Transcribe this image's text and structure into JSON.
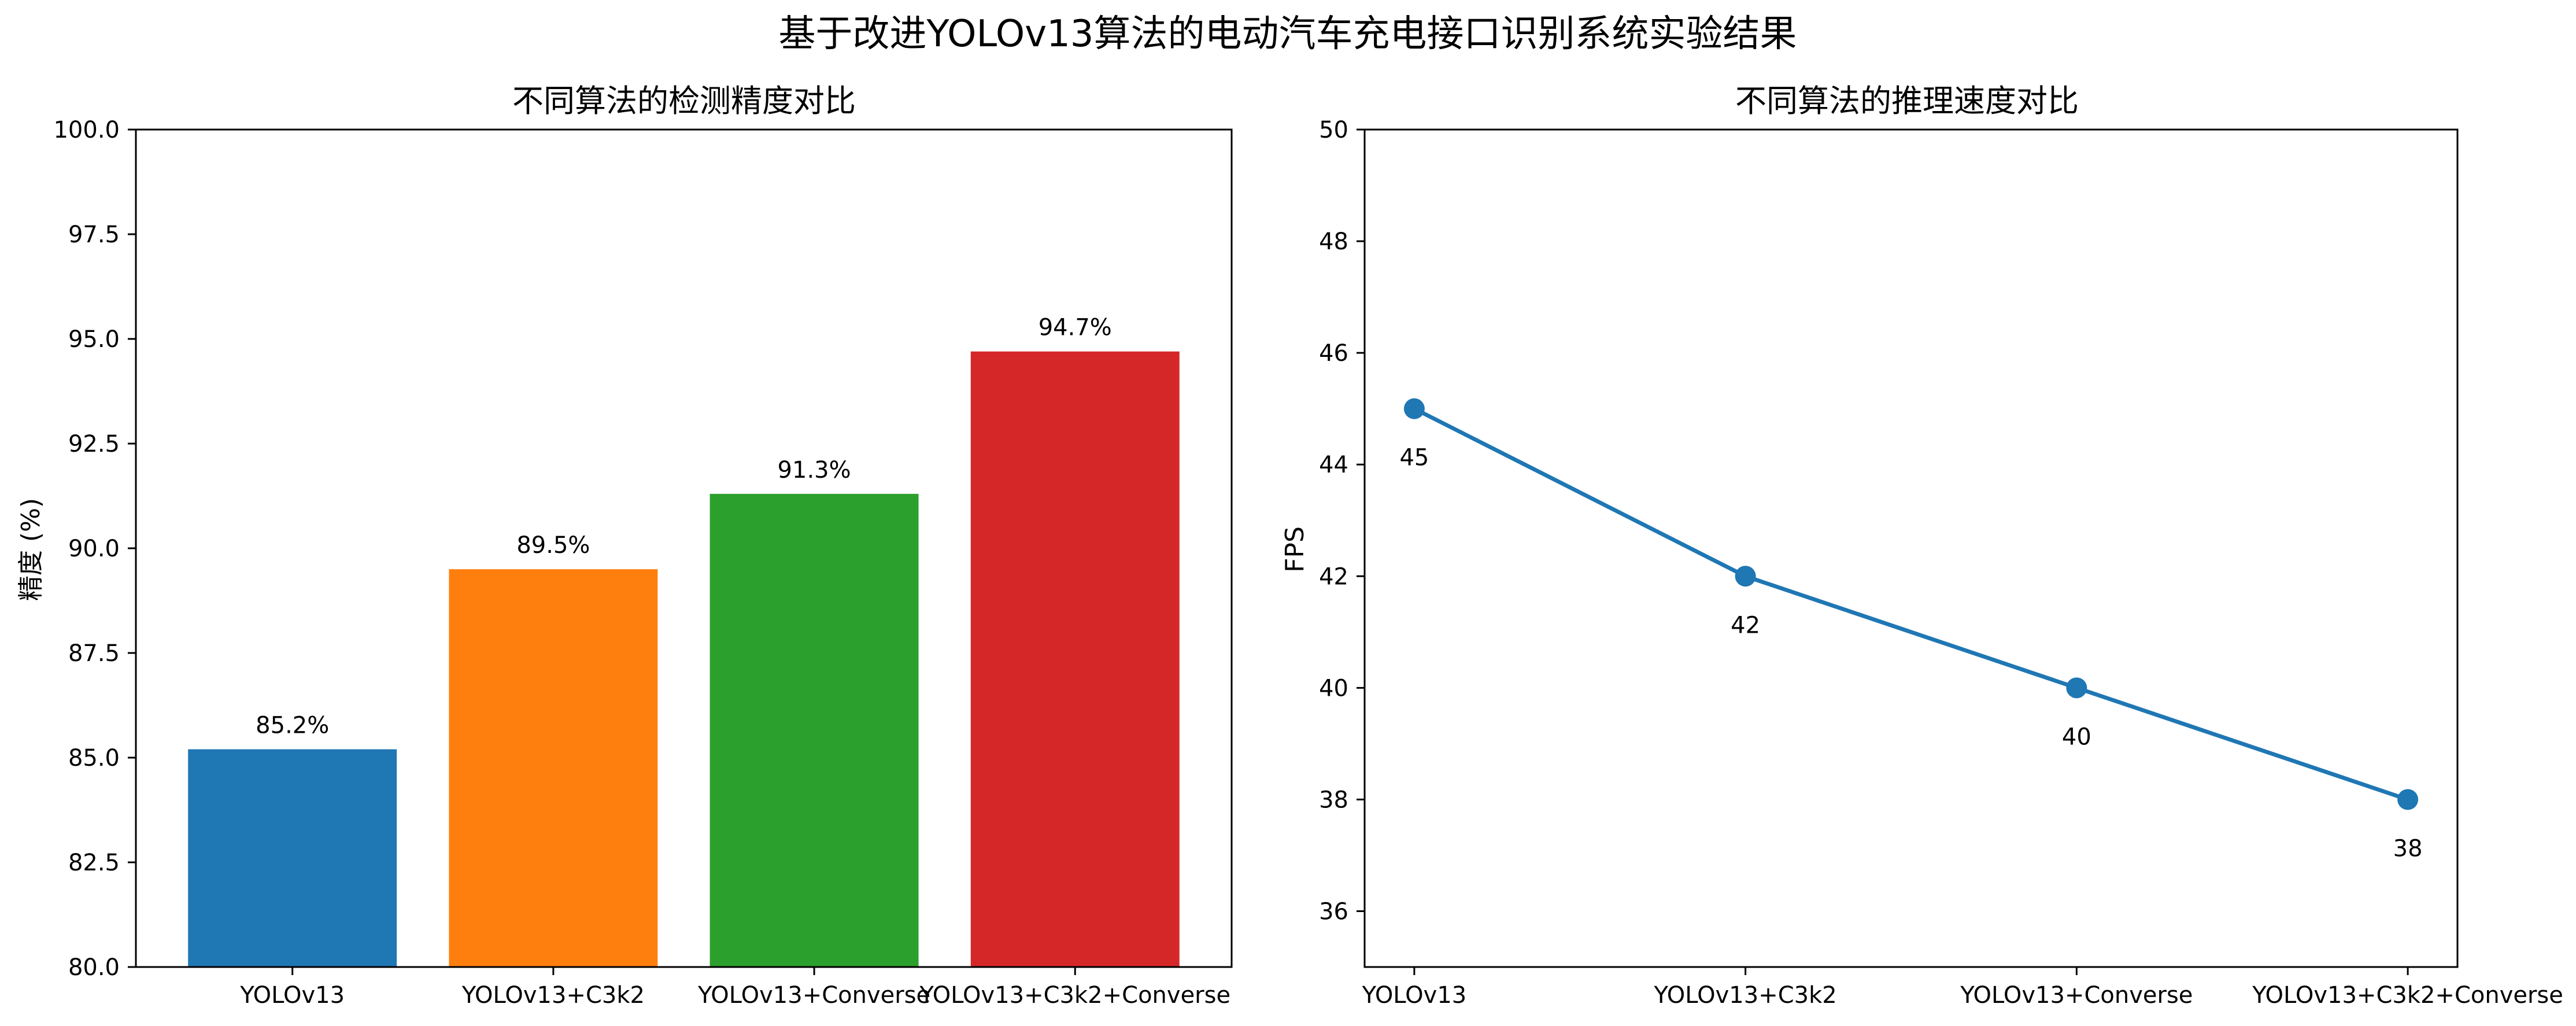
{
  "figure": {
    "title": "基于改进YOLOv13算法的电动汽车充电接口识别系统实验结果"
  },
  "chart_data": [
    {
      "type": "bar",
      "title": "不同算法的检测精度对比",
      "xlabel": "",
      "ylabel": "精度 (%)",
      "categories": [
        "YOLOv13",
        "YOLOv13+C3k2",
        "YOLOv13+Converse",
        "YOLOv13+C3k2+Converse"
      ],
      "values": [
        85.2,
        89.5,
        91.3,
        94.7
      ],
      "value_labels": [
        "85.2%",
        "89.5%",
        "91.3%",
        "94.7%"
      ],
      "colors": [
        "#1f77b4",
        "#ff7f0e",
        "#2ca02c",
        "#d62728"
      ],
      "ylim": [
        80,
        100
      ],
      "yticks": [
        "80.0",
        "82.5",
        "85.0",
        "87.5",
        "90.0",
        "92.5",
        "95.0",
        "97.5",
        "100.0"
      ],
      "grid": false
    },
    {
      "type": "line",
      "title": "不同算法的推理速度对比",
      "xlabel": "",
      "ylabel": "FPS",
      "categories": [
        "YOLOv13",
        "YOLOv13+C3k2",
        "YOLOv13+Converse",
        "YOLOv13+C3k2+Converse"
      ],
      "values": [
        45,
        42,
        40,
        38
      ],
      "value_labels": [
        "45",
        "42",
        "40",
        "38"
      ],
      "color": "#1f77b4",
      "ylim": [
        35,
        50
      ],
      "yticks": [
        "36",
        "38",
        "40",
        "42",
        "44",
        "46",
        "48",
        "50"
      ],
      "grid": false
    }
  ]
}
